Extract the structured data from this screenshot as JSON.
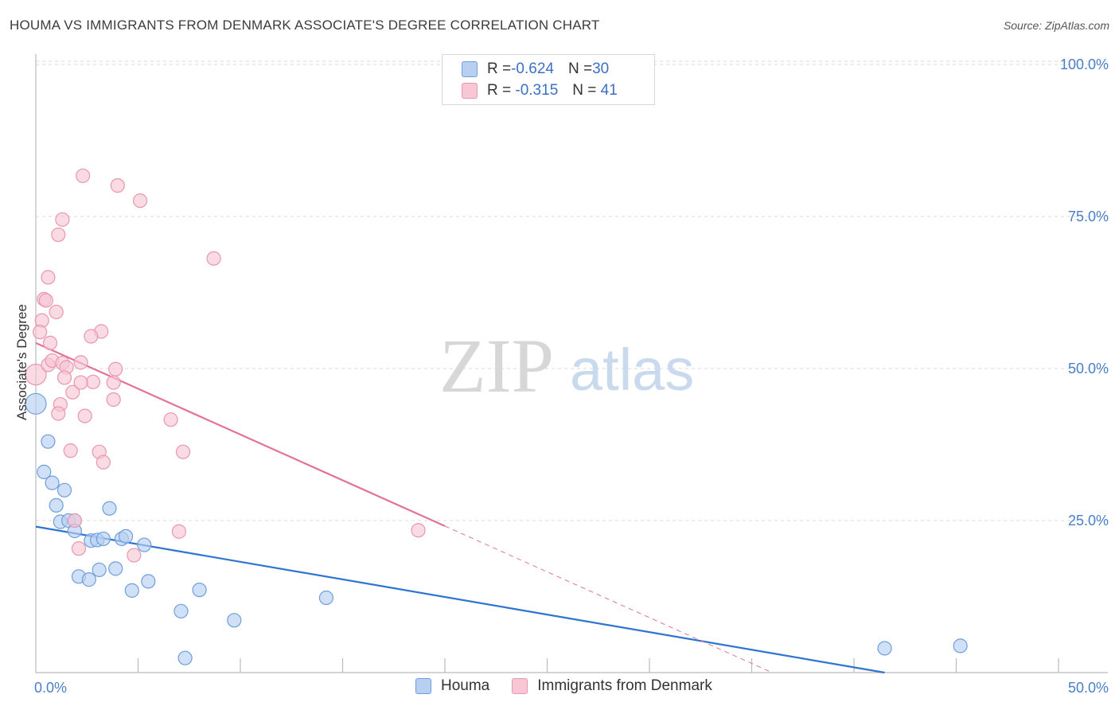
{
  "title": "HOUMA VS IMMIGRANTS FROM DENMARK ASSOCIATE'S DEGREE CORRELATION CHART",
  "source": "Source: ZipAtlas.com",
  "watermark": {
    "zip": "ZIP",
    "atlas": "atlas"
  },
  "legend": {
    "rows": [
      {
        "r_label": "R = ",
        "r_value": "-0.624",
        "n_label": "N = ",
        "n_value": "30"
      },
      {
        "r_label": "R = ",
        "r_value": " -0.315",
        "n_label": "N = ",
        "n_value": " 41"
      }
    ]
  },
  "colors": {
    "houma_fill": "#b7d0f2",
    "houma_stroke": "#6f9fdb",
    "houma_line": "#2f74d0",
    "denmark_fill": "#f8c6d4",
    "denmark_stroke": "#e897b0",
    "denmark_line": "#e3729a",
    "tick": "#4a7fc8",
    "grid": "#d9d9d9"
  },
  "chart_data": {
    "type": "scatter",
    "title": "HOUMA VS IMMIGRANTS FROM DENMARK ASSOCIATE'S DEGREE CORRELATION CHART",
    "xlabel": "",
    "ylabel": "Associate's Degree",
    "xlim": [
      0,
      50
    ],
    "ylim": [
      0,
      100
    ],
    "x_ticks": [
      "0.0%",
      "50.0%"
    ],
    "y_ticks": [
      {
        "value": 25,
        "label": "25.0%"
      },
      {
        "value": 50,
        "label": "50.0%"
      },
      {
        "value": 75,
        "label": "75.0%"
      },
      {
        "value": 100,
        "label": "100.0%"
      }
    ],
    "legend_position": "top-center",
    "series": [
      {
        "name": "Houma",
        "r": -0.624,
        "n": 30,
        "points": [
          [
            0.0,
            44.2
          ],
          [
            0.6,
            38.0
          ],
          [
            0.4,
            33.0
          ],
          [
            0.8,
            31.2
          ],
          [
            1.4,
            30.0
          ],
          [
            1.0,
            27.5
          ],
          [
            3.6,
            27.0
          ],
          [
            1.2,
            24.8
          ],
          [
            1.6,
            25.0
          ],
          [
            1.9,
            25.0
          ],
          [
            1.9,
            23.3
          ],
          [
            2.7,
            21.7
          ],
          [
            3.0,
            21.8
          ],
          [
            4.2,
            22.0
          ],
          [
            3.3,
            22.0
          ],
          [
            4.4,
            22.4
          ],
          [
            5.3,
            21.0
          ],
          [
            3.1,
            16.9
          ],
          [
            3.9,
            17.1
          ],
          [
            2.1,
            15.8
          ],
          [
            2.6,
            15.3
          ],
          [
            5.5,
            15.0
          ],
          [
            4.7,
            13.5
          ],
          [
            8.0,
            13.6
          ],
          [
            14.2,
            12.3
          ],
          [
            7.1,
            10.1
          ],
          [
            9.7,
            8.6
          ],
          [
            7.3,
            2.4
          ],
          [
            41.5,
            4.0
          ],
          [
            45.2,
            4.4
          ]
        ]
      },
      {
        "name": "Immigrants from Denmark",
        "r": -0.315,
        "n": 41,
        "points": [
          [
            2.3,
            81.7
          ],
          [
            4.0,
            80.1
          ],
          [
            5.1,
            77.6
          ],
          [
            1.3,
            74.5
          ],
          [
            1.1,
            72.0
          ],
          [
            8.7,
            68.1
          ],
          [
            0.6,
            65.0
          ],
          [
            0.4,
            61.4
          ],
          [
            0.5,
            61.2
          ],
          [
            1.0,
            59.3
          ],
          [
            0.3,
            57.9
          ],
          [
            0.2,
            56.0
          ],
          [
            3.2,
            56.1
          ],
          [
            2.7,
            55.3
          ],
          [
            0.7,
            54.2
          ],
          [
            0.0,
            49.0
          ],
          [
            0.6,
            50.6
          ],
          [
            0.8,
            51.3
          ],
          [
            1.3,
            50.9
          ],
          [
            1.5,
            50.2
          ],
          [
            2.2,
            51.0
          ],
          [
            3.9,
            49.9
          ],
          [
            1.4,
            48.5
          ],
          [
            2.8,
            47.8
          ],
          [
            3.8,
            47.7
          ],
          [
            1.8,
            46.1
          ],
          [
            2.2,
            47.7
          ],
          [
            3.8,
            44.9
          ],
          [
            1.2,
            44.1
          ],
          [
            1.1,
            42.6
          ],
          [
            2.4,
            42.2
          ],
          [
            6.6,
            41.6
          ],
          [
            1.7,
            36.5
          ],
          [
            3.1,
            36.3
          ],
          [
            7.2,
            36.3
          ],
          [
            3.3,
            34.6
          ],
          [
            1.9,
            25.0
          ],
          [
            7.0,
            23.2
          ],
          [
            18.7,
            23.4
          ],
          [
            2.1,
            20.4
          ],
          [
            4.8,
            19.3
          ]
        ]
      }
    ],
    "trendlines": [
      {
        "series": "Houma",
        "x_start": 0,
        "y_start": 24.0,
        "x_end": 41.5,
        "y_end": 0,
        "dashed_to": null
      },
      {
        "series": "Immigrants from Denmark",
        "x_start": 0,
        "y_start": 54.2,
        "x_end": 20,
        "y_end": 24.1,
        "dashed_to": [
          36.0,
          0
        ]
      }
    ]
  }
}
